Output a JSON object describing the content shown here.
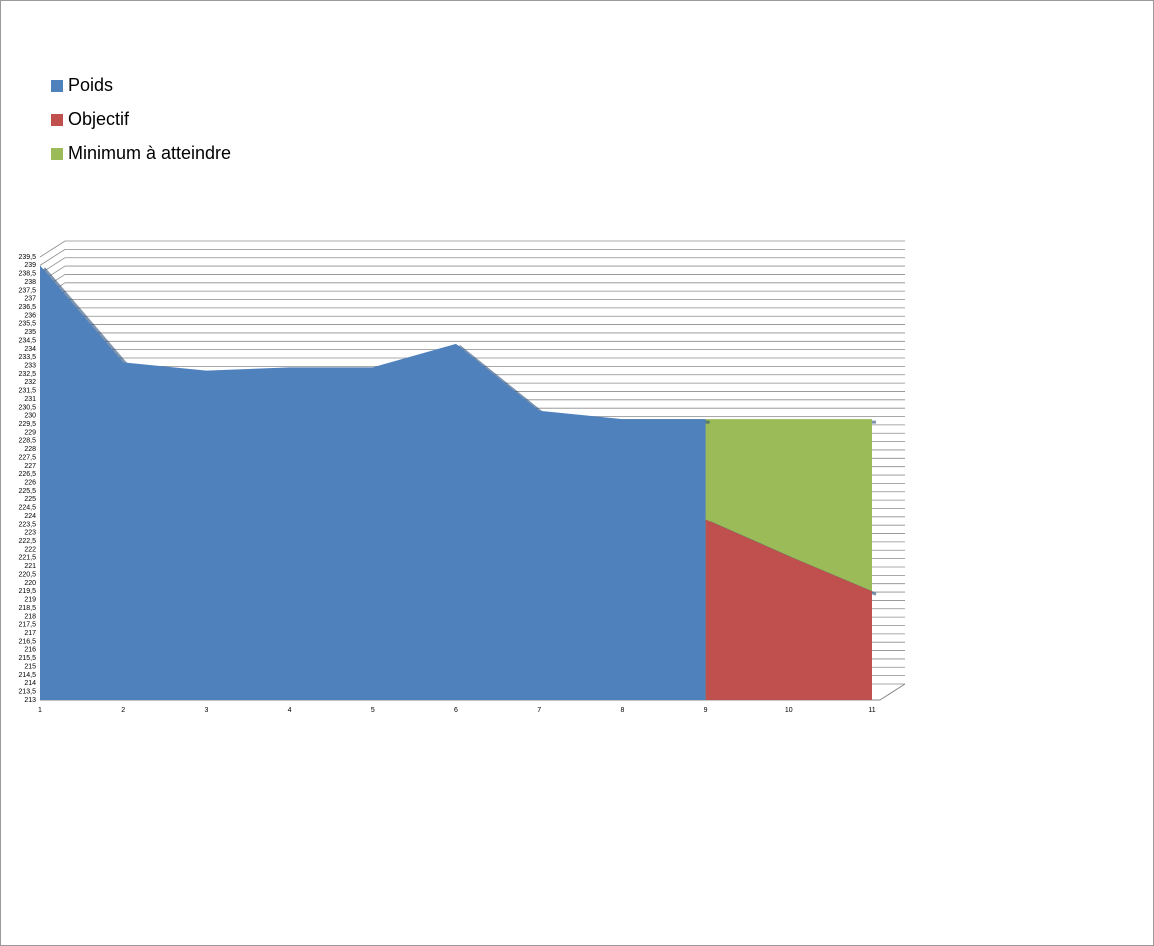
{
  "chart_data": {
    "type": "area",
    "categories": [
      "1",
      "2",
      "3",
      "4",
      "5",
      "6",
      "7",
      "8",
      "9",
      "10",
      "11"
    ],
    "series": [
      {
        "name": "Minimum à atteindre",
        "color": "#9bbb59",
        "values": [
          229.8,
          229.8,
          229.8,
          229.8,
          229.8,
          229.8,
          229.8,
          229.8,
          229.8,
          229.8,
          229.8
        ]
      },
      {
        "name": "Objectif",
        "color": "#c0504d",
        "values": [
          null,
          null,
          null,
          null,
          null,
          null,
          null,
          null,
          223.8,
          221.6,
          219.5
        ]
      },
      {
        "name": "Poids",
        "color": "#4f81bd",
        "values": [
          239,
          233.2,
          232.7,
          232.9,
          232.9,
          234.3,
          230.3,
          229.8,
          229.8,
          null,
          null
        ]
      }
    ],
    "legend_order": [
      2,
      1,
      0
    ],
    "ylim": [
      213,
      239.5
    ],
    "yticks": [
      213,
      {
        "value": 213.5,
        "label": "213,5"
      },
      214,
      {
        "value": 214.5,
        "label": "214,5"
      },
      215,
      {
        "value": 215.5,
        "label": "215,5"
      },
      216,
      {
        "value": 216.5,
        "label": "216,5"
      },
      217,
      {
        "value": 217.5,
        "label": "217,5"
      },
      218,
      {
        "value": 218.5,
        "label": "218,5"
      },
      219,
      {
        "value": 219.5,
        "label": "219,5"
      },
      220,
      {
        "value": 220.5,
        "label": "220,5"
      },
      221,
      {
        "value": 221.5,
        "label": "221,5"
      },
      222,
      {
        "value": 222.5,
        "label": "222,5"
      },
      223,
      {
        "value": 223.5,
        "label": "223,5"
      },
      224,
      {
        "value": 224.5,
        "label": "224,5"
      },
      225,
      {
        "value": 225.5,
        "label": "225,5"
      },
      226,
      {
        "value": 226.5,
        "label": "226,5"
      },
      227,
      {
        "value": 227.5,
        "label": "227,5"
      },
      228,
      {
        "value": 228.5,
        "label": "228,5"
      },
      229,
      {
        "value": 229.5,
        "label": "229,5"
      },
      230,
      {
        "value": 230.5,
        "label": "230,5"
      },
      231,
      {
        "value": 231.5,
        "label": "231,5"
      },
      232,
      {
        "value": 232.5,
        "label": "232,5"
      },
      233,
      {
        "value": 233.5,
        "label": "233,5"
      },
      234,
      {
        "value": 234.5,
        "label": "234,5"
      },
      235,
      {
        "value": 235.5,
        "label": "235,5"
      },
      236,
      {
        "value": 236.5,
        "label": "236,5"
      },
      237,
      {
        "value": 237.5,
        "label": "237,5"
      },
      238,
      {
        "value": 238.5,
        "label": "238,5"
      },
      239,
      {
        "value": 239.5,
        "label": "239,5"
      }
    ],
    "grid": true
  }
}
